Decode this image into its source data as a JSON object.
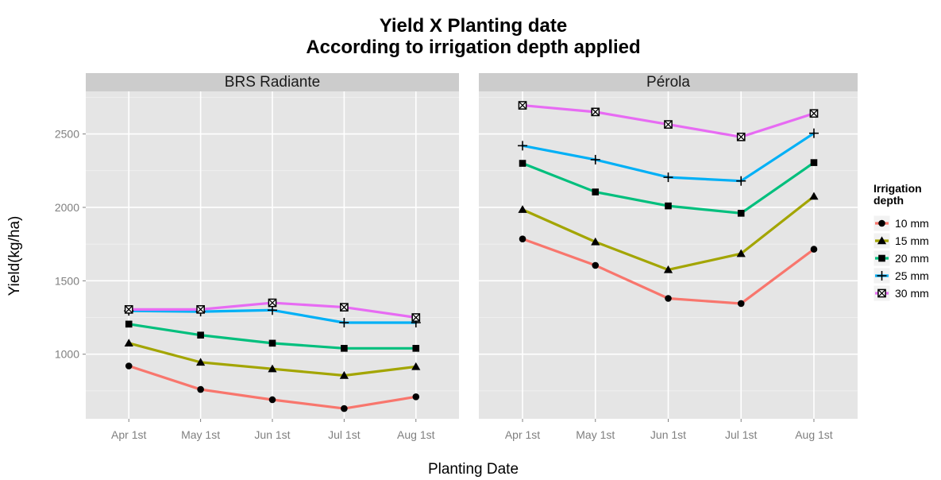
{
  "chart_data": {
    "type": "line",
    "title": "Yield X Planting date",
    "subtitle": "According to irrigation depth applied",
    "xlabel": "Planting Date",
    "ylabel": "Yield(kg/ha)",
    "categories": [
      "Apr 1st",
      "May 1st",
      "Jun 1st",
      "Jul 1st",
      "Aug 1st"
    ],
    "yticks": [
      1000,
      1500,
      2000,
      2500
    ],
    "ylim": [
      560,
      2790
    ],
    "grid": true,
    "legend_title": "Irrigation depth",
    "legend_title_lines": [
      "Irrigation",
      "depth"
    ],
    "legend_position": "right",
    "series_style": [
      {
        "name": "10 mm",
        "color": "#F8766D",
        "shape": "circle"
      },
      {
        "name": "15 mm",
        "color": "#A3A500",
        "shape": "triangle"
      },
      {
        "name": "20 mm",
        "color": "#00BF7D",
        "shape": "square"
      },
      {
        "name": "25 mm",
        "color": "#00B0F6",
        "shape": "plus"
      },
      {
        "name": "30 mm",
        "color": "#E76BF3",
        "shape": "boxed-x"
      }
    ],
    "panels": [
      {
        "name": "BRS Radiante",
        "series": [
          {
            "name": "10 mm",
            "values": [
              920,
              760,
              690,
              630,
              710
            ]
          },
          {
            "name": "15 mm",
            "values": [
              1075,
              945,
              900,
              855,
              915
            ]
          },
          {
            "name": "20 mm",
            "values": [
              1205,
              1130,
              1075,
              1040,
              1040
            ]
          },
          {
            "name": "25 mm",
            "values": [
              1295,
              1290,
              1300,
              1215,
              1215
            ]
          },
          {
            "name": "30 mm",
            "values": [
              1305,
              1305,
              1350,
              1320,
              1250
            ]
          }
        ]
      },
      {
        "name": "Pérola",
        "series": [
          {
            "name": "10 mm",
            "values": [
              1785,
              1605,
              1380,
              1345,
              1715
            ]
          },
          {
            "name": "15 mm",
            "values": [
              1985,
              1765,
              1575,
              1685,
              2075
            ]
          },
          {
            "name": "20 mm",
            "values": [
              2300,
              2105,
              2010,
              1960,
              2305
            ]
          },
          {
            "name": "25 mm",
            "values": [
              2420,
              2325,
              2205,
              2180,
              2505
            ]
          },
          {
            "name": "30 mm",
            "values": [
              2695,
              2650,
              2565,
              2480,
              2640
            ]
          }
        ]
      }
    ]
  }
}
